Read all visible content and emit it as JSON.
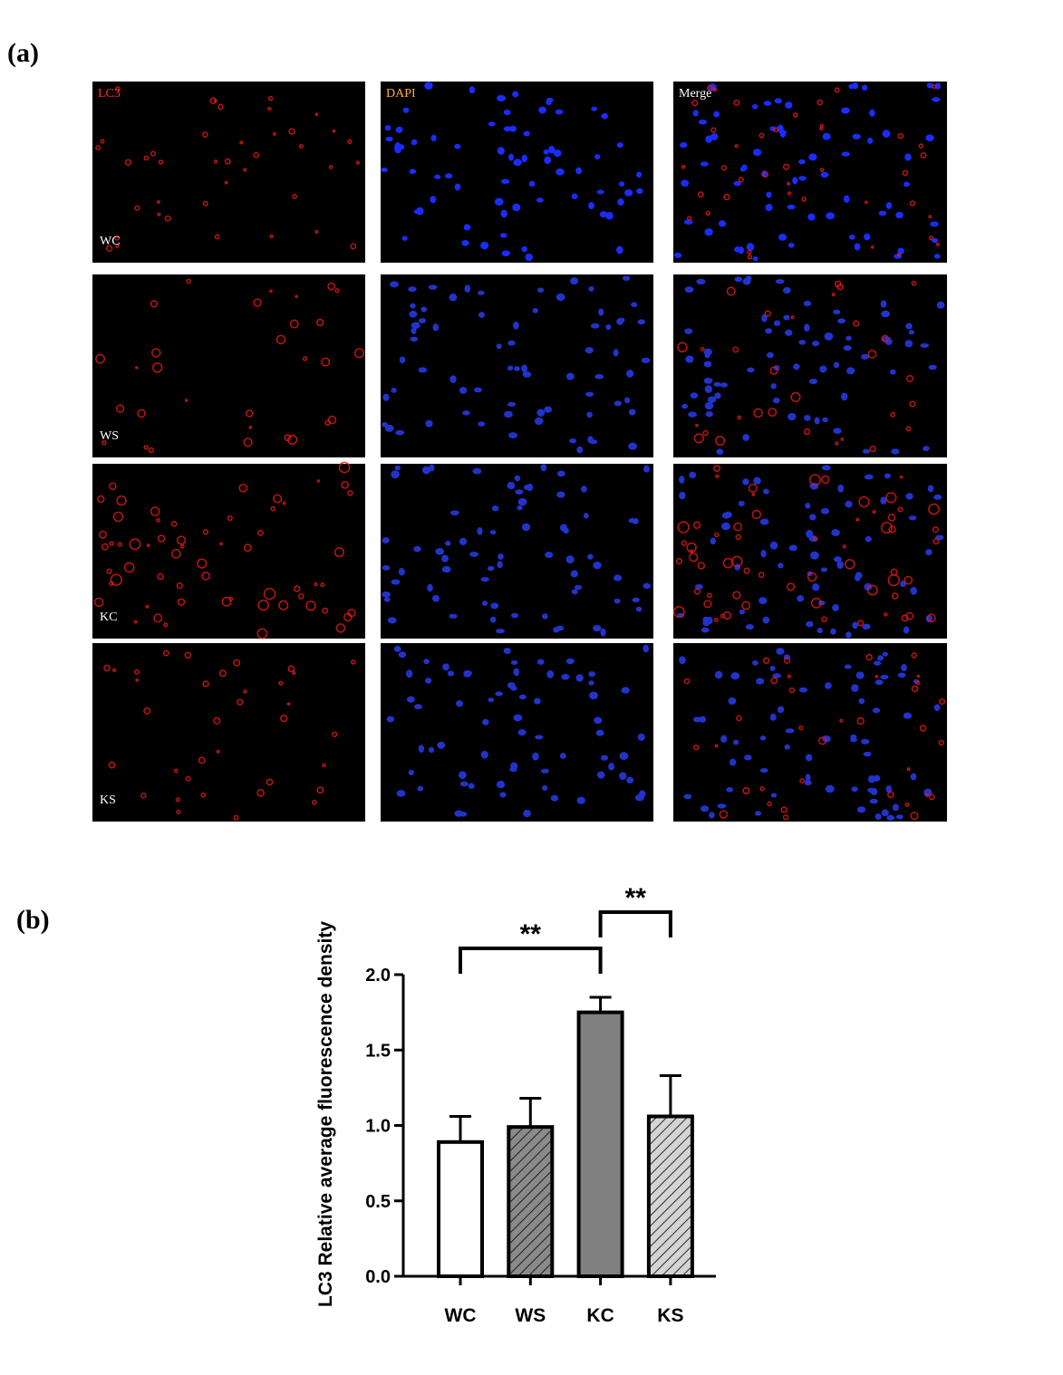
{
  "panel_a": {
    "label": "(a)",
    "channels": [
      "LC3",
      "DAPI",
      "Merge"
    ],
    "groups": [
      "WC",
      "WS",
      "KC",
      "KS"
    ]
  },
  "chart_data": {
    "type": "bar",
    "panel_label": "(b)",
    "y_label": "LC3 Relative average fluorescence density",
    "categories": [
      "WC",
      "WS",
      "KC",
      "KS"
    ],
    "values": [
      0.89,
      0.99,
      1.75,
      1.06
    ],
    "errors": [
      0.17,
      0.19,
      0.1,
      0.27
    ],
    "colors": [
      "#ffffff",
      "#8a8a8a",
      "#808080",
      "#d4d4d4"
    ],
    "hatch": [
      false,
      true,
      false,
      true
    ],
    "ylim": [
      0,
      2.0
    ],
    "yticks": [
      {
        "value": 0,
        "label": "0.0"
      },
      {
        "value": 0.5,
        "label": "0.5"
      },
      {
        "value": 1.0,
        "label": "1.0"
      },
      {
        "value": 1.5,
        "label": "1.5"
      },
      {
        "value": 2.0,
        "label": "2.0"
      }
    ],
    "comparisons": [
      {
        "label": "**",
        "between": [
          0,
          2
        ]
      },
      {
        "label": "**",
        "between": [
          2,
          3
        ]
      }
    ]
  }
}
